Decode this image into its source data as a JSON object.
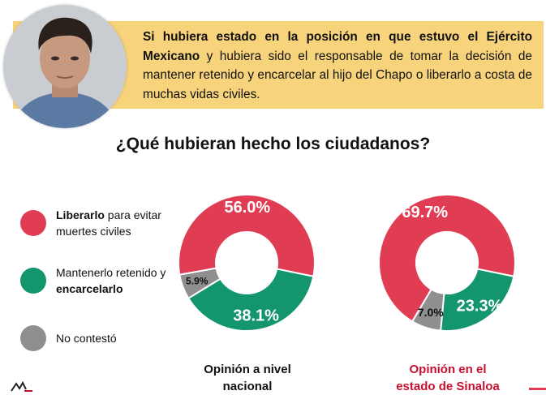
{
  "banner": {
    "question_bold": "Si hubiera estado en la posición en que estuvo el Ejército Mexicano",
    "question_rest": " y hubiera sido el responsable de tomar la decisión de mantener retenido y encarcelar al hijo del Chapo o liberarlo a costa de muchas vidas civiles."
  },
  "heading": "¿Qué hubieran hecho los ciudadanos?",
  "legend": [
    {
      "bold": "Liberarlo",
      "rest": " para evitar muertes civiles",
      "color": "#e03d55"
    },
    {
      "rest": "Mantenerlo retenido y ",
      "bold": "encarcelarlo",
      "color": "#13956e"
    },
    {
      "rest": "No contestó",
      "color": "#8f8f8f"
    }
  ],
  "chart_labels": {
    "national_line1": "Opinión a nivel",
    "national_line2": "nacional",
    "sinaloa_line1": "Opinión en el",
    "sinaloa_line2": "estado de Sinaloa"
  },
  "chart_data": [
    {
      "type": "pie",
      "categories": [
        "Liberarlo para evitar muertes civiles",
        "Mantenerlo retenido y encarcelarlo",
        "No contestó"
      ],
      "values": [
        56.0,
        38.1,
        5.9
      ],
      "labels": [
        "56.0%",
        "38.1%",
        "5.9%"
      ],
      "colors": [
        "#e03d55",
        "#13956e",
        "#8f8f8f"
      ],
      "title": "Opinión a nivel nacional"
    },
    {
      "type": "pie",
      "categories": [
        "Liberarlo para evitar muertes civiles",
        "Mantenerlo retenido y encarcelarlo",
        "No contestó"
      ],
      "values": [
        69.7,
        23.3,
        7.0
      ],
      "labels": [
        "69.7%",
        "23.3%",
        "7.0%"
      ],
      "colors": [
        "#e03d55",
        "#13956e",
        "#8f8f8f"
      ],
      "title": "Opinión en el estado de Sinaloa"
    }
  ]
}
